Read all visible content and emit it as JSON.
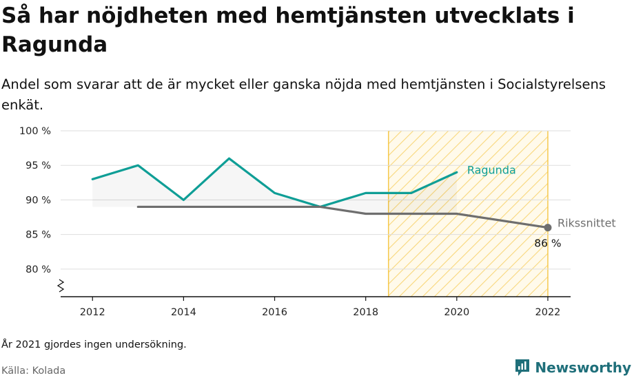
{
  "title": "Så har nöjdheten med hemtjänsten utvecklats i Ragunda",
  "subtitle": "Andel som svarar att de är mycket eller ganska nöjda med hemtjänsten i Socialstyrelsens enkät.",
  "note": "År 2021 gjordes ingen undersökning.",
  "source": "Källa: Kolada",
  "brand": {
    "name": "Newsworthy",
    "icon": "newsworthy-logo-icon"
  },
  "chart_data": {
    "type": "line",
    "x": [
      2012,
      2013,
      2014,
      2015,
      2016,
      2017,
      2018,
      2019,
      2020,
      2022
    ],
    "series": [
      {
        "name": "Ragunda",
        "color": "#0f9e96",
        "points": [
          [
            2012,
            93
          ],
          [
            2013,
            95
          ],
          [
            2014,
            90
          ],
          [
            2015,
            96
          ],
          [
            2016,
            91
          ],
          [
            2017,
            89
          ],
          [
            2018,
            91
          ],
          [
            2019,
            91
          ],
          [
            2020,
            94
          ]
        ]
      },
      {
        "name": "Rikssnittet",
        "color": "#6e6e6e",
        "points": [
          [
            2013,
            89
          ],
          [
            2014,
            89
          ],
          [
            2015,
            89
          ],
          [
            2016,
            89
          ],
          [
            2017,
            89
          ],
          [
            2018,
            88
          ],
          [
            2019,
            88
          ],
          [
            2020,
            88
          ],
          [
            2022,
            86
          ]
        ]
      }
    ],
    "end_label": "86 %",
    "y_ticks": [
      {
        "value": 80,
        "label": "80 %"
      },
      {
        "value": 85,
        "label": "85 %"
      },
      {
        "value": 90,
        "label": "90 %"
      },
      {
        "value": 95,
        "label": "95 %"
      },
      {
        "value": 100,
        "label": "100 %"
      }
    ],
    "x_ticks": [
      {
        "value": 2012,
        "label": "2012"
      },
      {
        "value": 2014,
        "label": "2014"
      },
      {
        "value": 2016,
        "label": "2016"
      },
      {
        "value": 2018,
        "label": "2018"
      },
      {
        "value": 2020,
        "label": "2020"
      },
      {
        "value": 2022,
        "label": "2022"
      }
    ],
    "xlim": [
      2011.3,
      2022.5
    ],
    "ylim": [
      76,
      100
    ],
    "y_axis_break": true,
    "highlight_range": {
      "from": 2018.5,
      "to": 2022,
      "pattern": "diagonal-hatch",
      "color": "#f5c84c"
    },
    "area_fill_between_series": true,
    "grid": true,
    "xlabel": "",
    "ylabel": ""
  }
}
